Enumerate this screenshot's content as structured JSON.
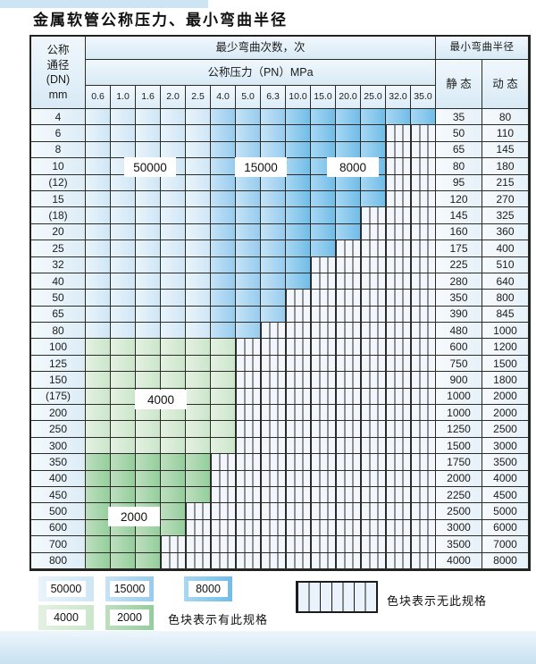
{
  "title": "金属软管公称压力、最小弯曲半径",
  "table": {
    "dn_header_lines": [
      "公称",
      "通径",
      "(DN)",
      "mm"
    ],
    "bend_cycles_header": "最少弯曲次数，次",
    "pressure_header": "公称压力（PN）MPa",
    "radius_header": "最小弯曲半径",
    "static_header": "静 态",
    "dynamic_header": "动 态",
    "pressures": [
      "0.6",
      "1.0",
      "1.6",
      "2.0",
      "2.5",
      "4.0",
      "5.0",
      "6.3",
      "10.0",
      "15.0",
      "20.0",
      "25.0",
      "32.0",
      "35.0"
    ],
    "rows": [
      {
        "dn": "4",
        "colored": 14,
        "zone": "blue",
        "static": "35",
        "dynamic": "80"
      },
      {
        "dn": "6",
        "colored": 12,
        "zone": "blue",
        "static": "50",
        "dynamic": "110"
      },
      {
        "dn": "8",
        "colored": 12,
        "zone": "blue",
        "static": "65",
        "dynamic": "145"
      },
      {
        "dn": "10",
        "colored": 12,
        "zone": "blue",
        "static": "80",
        "dynamic": "180"
      },
      {
        "dn": "(12)",
        "colored": 12,
        "zone": "blue",
        "static": "95",
        "dynamic": "215"
      },
      {
        "dn": "15",
        "colored": 12,
        "zone": "blue",
        "static": "120",
        "dynamic": "270"
      },
      {
        "dn": "(18)",
        "colored": 11,
        "zone": "blue",
        "static": "145",
        "dynamic": "325"
      },
      {
        "dn": "20",
        "colored": 11,
        "zone": "blue",
        "static": "160",
        "dynamic": "360"
      },
      {
        "dn": "25",
        "colored": 10,
        "zone": "blue",
        "static": "175",
        "dynamic": "400"
      },
      {
        "dn": "32",
        "colored": 9,
        "zone": "blue",
        "static": "225",
        "dynamic": "510"
      },
      {
        "dn": "40",
        "colored": 9,
        "zone": "blue",
        "static": "280",
        "dynamic": "640"
      },
      {
        "dn": "50",
        "colored": 8,
        "zone": "blue",
        "static": "350",
        "dynamic": "800"
      },
      {
        "dn": "65",
        "colored": 8,
        "zone": "blue",
        "static": "390",
        "dynamic": "845"
      },
      {
        "dn": "80",
        "colored": 7,
        "zone": "blue",
        "static": "480",
        "dynamic": "1000"
      },
      {
        "dn": "100",
        "colored": 6,
        "zone": "g4",
        "static": "600",
        "dynamic": "1200"
      },
      {
        "dn": "125",
        "colored": 6,
        "zone": "g4",
        "static": "750",
        "dynamic": "1500"
      },
      {
        "dn": "150",
        "colored": 6,
        "zone": "g4",
        "static": "900",
        "dynamic": "1800"
      },
      {
        "dn": "(175)",
        "colored": 6,
        "zone": "g4",
        "static": "1000",
        "dynamic": "2000"
      },
      {
        "dn": "200",
        "colored": 6,
        "zone": "g4",
        "static": "1000",
        "dynamic": "2000"
      },
      {
        "dn": "250",
        "colored": 6,
        "zone": "g4",
        "static": "1250",
        "dynamic": "2500"
      },
      {
        "dn": "300",
        "colored": 6,
        "zone": "g4",
        "static": "1500",
        "dynamic": "3000"
      },
      {
        "dn": "350",
        "colored": 5,
        "zone": "g2",
        "static": "1750",
        "dynamic": "3500"
      },
      {
        "dn": "400",
        "colored": 5,
        "zone": "g2",
        "static": "2000",
        "dynamic": "4000"
      },
      {
        "dn": "450",
        "colored": 5,
        "zone": "g2",
        "static": "2250",
        "dynamic": "4500"
      },
      {
        "dn": "500",
        "colored": 4,
        "zone": "g2",
        "static": "2500",
        "dynamic": "5000"
      },
      {
        "dn": "600",
        "colored": 4,
        "zone": "g2",
        "static": "3000",
        "dynamic": "6000"
      },
      {
        "dn": "700",
        "colored": 3,
        "zone": "g2",
        "static": "3500",
        "dynamic": "7000"
      },
      {
        "dn": "800",
        "colored": 3,
        "zone": "g2",
        "static": "4000",
        "dynamic": "8000"
      }
    ],
    "overlay_labels": [
      "50000",
      "15000",
      "8000",
      "4000",
      "2000"
    ]
  },
  "legend": {
    "have_items": [
      {
        "label": "50000",
        "zone": "b1"
      },
      {
        "label": "15000",
        "zone": "b2"
      },
      {
        "label": "8000",
        "zone": "b3"
      },
      {
        "label": "4000",
        "zone": "g4"
      },
      {
        "label": "2000",
        "zone": "g2"
      }
    ],
    "have_text": "色块表示有此规格",
    "none_text": "色块表示无此规格"
  },
  "colors": {
    "b1_light": "#e9f4fb",
    "b1": "#cfe6f6",
    "b2_light": "#c6e3f6",
    "b2": "#96ccef",
    "b3_light": "#a8d7f2",
    "b3": "#70bde9",
    "g4_light": "#e4f1e2",
    "g4": "#cbe6ca",
    "g2_light": "#bedfbf",
    "g2": "#93ce9b",
    "grid_line": "#2b2b28",
    "no_spec_bg": "#f2f7fd"
  }
}
